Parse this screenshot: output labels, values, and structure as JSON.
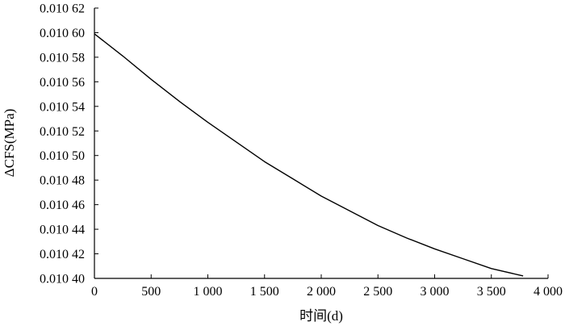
{
  "chart_data": {
    "type": "line",
    "title": "",
    "xlabel": "时间(d)",
    "ylabel": "ΔCFS(MPa)",
    "xlim": [
      0,
      4000
    ],
    "ylim": [
      0.0104,
      0.01062
    ],
    "x_ticks": [
      0,
      500,
      1000,
      1500,
      2000,
      2500,
      3000,
      3500,
      4000
    ],
    "x_tick_labels": [
      "0",
      "500",
      "1 000",
      "1 500",
      "2 000",
      "2 500",
      "3 000",
      "3 500",
      "4 000"
    ],
    "y_ticks": [
      0.0104,
      0.01042,
      0.01044,
      0.01046,
      0.01048,
      0.0105,
      0.01052,
      0.01054,
      0.01056,
      0.01058,
      0.0106,
      0.01062
    ],
    "y_tick_labels": [
      "0.010 40",
      "0.010 42",
      "0.010 44",
      "0.010 46",
      "0.010 48",
      "0.010 50",
      "0.010 52",
      "0.010 54",
      "0.010 56",
      "0.010 58",
      "0.010 60",
      "0.010 62"
    ],
    "grid": false,
    "series": [
      {
        "x": [
          0,
          250,
          500,
          750,
          1000,
          1250,
          1500,
          1750,
          2000,
          2250,
          2500,
          2750,
          3000,
          3250,
          3500,
          3780
        ],
        "y": [
          0.010599,
          0.010581,
          0.010562,
          0.010544,
          0.010527,
          0.010511,
          0.010495,
          0.010481,
          0.010467,
          0.010455,
          0.010443,
          0.010433,
          0.010424,
          0.010416,
          0.010408,
          0.010402
        ]
      }
    ]
  }
}
